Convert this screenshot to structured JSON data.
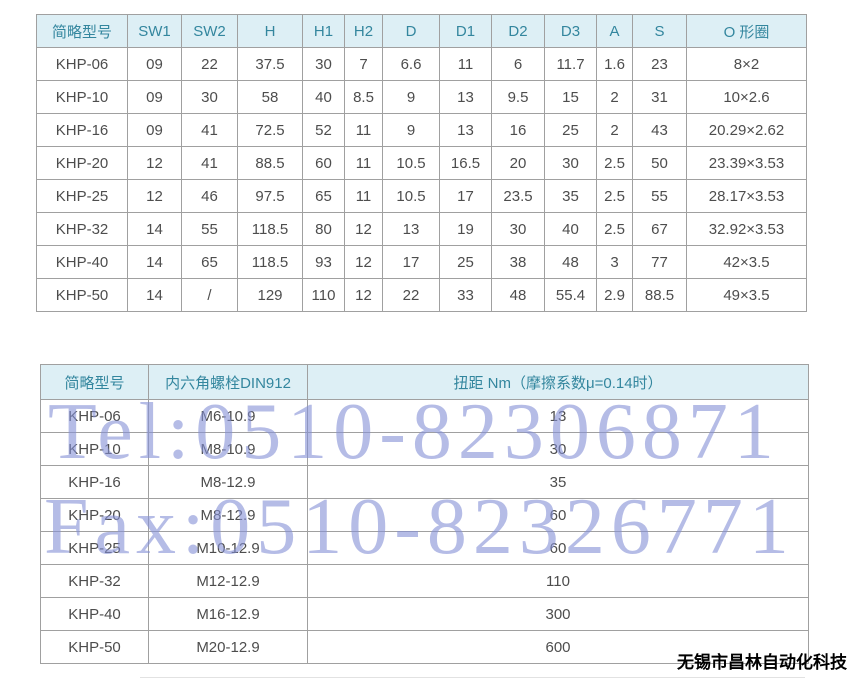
{
  "colors": {
    "header_bg": "#ddeff5",
    "header_text": "#33869e",
    "cell_text": "#4d4d4d",
    "border": "#a0a0a0",
    "watermark": "rgba(131,144,214,0.60)",
    "company_text": "#000000"
  },
  "dimensions_table": {
    "headers": [
      "简略型号",
      "SW1",
      "SW2",
      "H",
      "H1",
      "H2",
      "D",
      "D1",
      "D2",
      "D3",
      "A",
      "S",
      "O 形圈"
    ],
    "rows": [
      [
        "KHP-06",
        "09",
        "22",
        "37.5",
        "30",
        "7",
        "6.6",
        "11",
        "6",
        "11.7",
        "1.6",
        "23",
        "8×2"
      ],
      [
        "KHP-10",
        "09",
        "30",
        "58",
        "40",
        "8.5",
        "9",
        "13",
        "9.5",
        "15",
        "2",
        "31",
        "10×2.6"
      ],
      [
        "KHP-16",
        "09",
        "41",
        "72.5",
        "52",
        "11",
        "9",
        "13",
        "16",
        "25",
        "2",
        "43",
        "20.29×2.62"
      ],
      [
        "KHP-20",
        "12",
        "41",
        "88.5",
        "60",
        "11",
        "10.5",
        "16.5",
        "20",
        "30",
        "2.5",
        "50",
        "23.39×3.53"
      ],
      [
        "KHP-25",
        "12",
        "46",
        "97.5",
        "65",
        "11",
        "10.5",
        "17",
        "23.5",
        "35",
        "2.5",
        "55",
        "28.17×3.53"
      ],
      [
        "KHP-32",
        "14",
        "55",
        "118.5",
        "80",
        "12",
        "13",
        "19",
        "30",
        "40",
        "2.5",
        "67",
        "32.92×3.53"
      ],
      [
        "KHP-40",
        "14",
        "65",
        "118.5",
        "93",
        "12",
        "17",
        "25",
        "38",
        "48",
        "3",
        "77",
        "42×3.5"
      ],
      [
        "KHP-50",
        "14",
        "/",
        "129",
        "110",
        "12",
        "22",
        "33",
        "48",
        "55.4",
        "2.9",
        "88.5",
        "49×3.5"
      ]
    ]
  },
  "torque_table": {
    "headers": [
      "简略型号",
      "内六角螺栓DIN912",
      "扭距 Nm（摩擦系数μ=0.14时）"
    ],
    "rows": [
      [
        "KHP-06",
        "M6-10.9",
        "13"
      ],
      [
        "KHP-10",
        "M8-10.9",
        "30"
      ],
      [
        "KHP-16",
        "M8-12.9",
        "35"
      ],
      [
        "KHP-20",
        "M8-12.9",
        "60"
      ],
      [
        "KHP-25",
        "M10-12.9",
        "60"
      ],
      [
        "KHP-32",
        "M12-12.9",
        "110"
      ],
      [
        "KHP-40",
        "M16-12.9",
        "300"
      ],
      [
        "KHP-50",
        "M20-12.9",
        "600"
      ]
    ]
  },
  "watermarks": {
    "tel": "Tel:0510-82306871",
    "fax": "Fax:0510-82326771"
  },
  "footer": {
    "company_name": "无锡市昌林自动化科技"
  }
}
